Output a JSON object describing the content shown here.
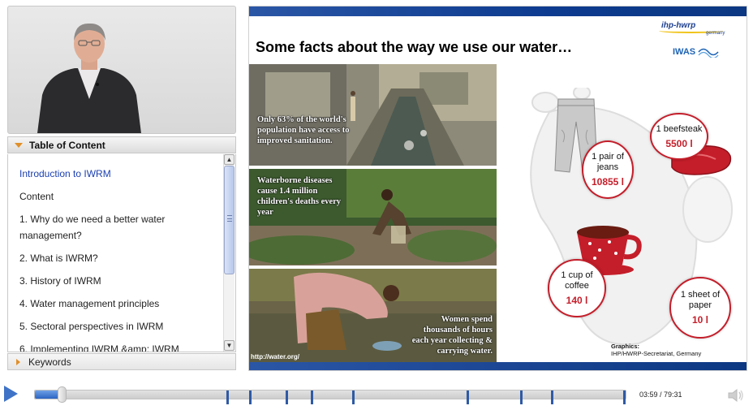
{
  "toc": {
    "title": "Table of Content",
    "items": [
      {
        "label": "Introduction to IWRM",
        "active": true
      },
      {
        "label": "Content"
      },
      {
        "label": "1. Why do we need a better water management?"
      },
      {
        "label": "2. What is IWRM?"
      },
      {
        "label": "3. History of IWRM"
      },
      {
        "label": "4. Water management principles"
      },
      {
        "label": "5. Sectoral perspectives in IWRM"
      },
      {
        "label": "6. Implementing IWRM &amp; IWRM"
      }
    ]
  },
  "keywords": {
    "title": "Keywords"
  },
  "slide": {
    "title": "Some facts about the way we use our water…",
    "logo_ihp": "ihp-hwrp",
    "logo_ihp_sub": "germany",
    "logo_iwas": "IWAS",
    "photos": [
      {
        "caption": "Only 63% of the world's population have access to improved sanitation."
      },
      {
        "caption": "Waterborne diseases cause 1.4 million children's deaths every year"
      },
      {
        "caption": "Women spend thousands of hours each year collecting & carrying water.",
        "url": "http://water.org/"
      }
    ],
    "facts": [
      {
        "label": "1 pair of jeans",
        "value": "10855 l"
      },
      {
        "label": "1 beefsteak",
        "value": "5500 l"
      },
      {
        "label": "1 cup of coffee",
        "value": "140 l"
      },
      {
        "label": "1 sheet of paper",
        "value": "10 l"
      }
    ],
    "graphics_label": "Graphics:",
    "graphics_source": "IHP/HWRP-Secretariat, Germany"
  },
  "player": {
    "current_time": "03:59",
    "total_time": "79:31",
    "time_display": "03:59 / 79:31",
    "progress": 0.05,
    "colors": {
      "accent": "#3f73c7",
      "slide_bar": "#0c3782",
      "fact_red": "#c41e2a"
    }
  }
}
